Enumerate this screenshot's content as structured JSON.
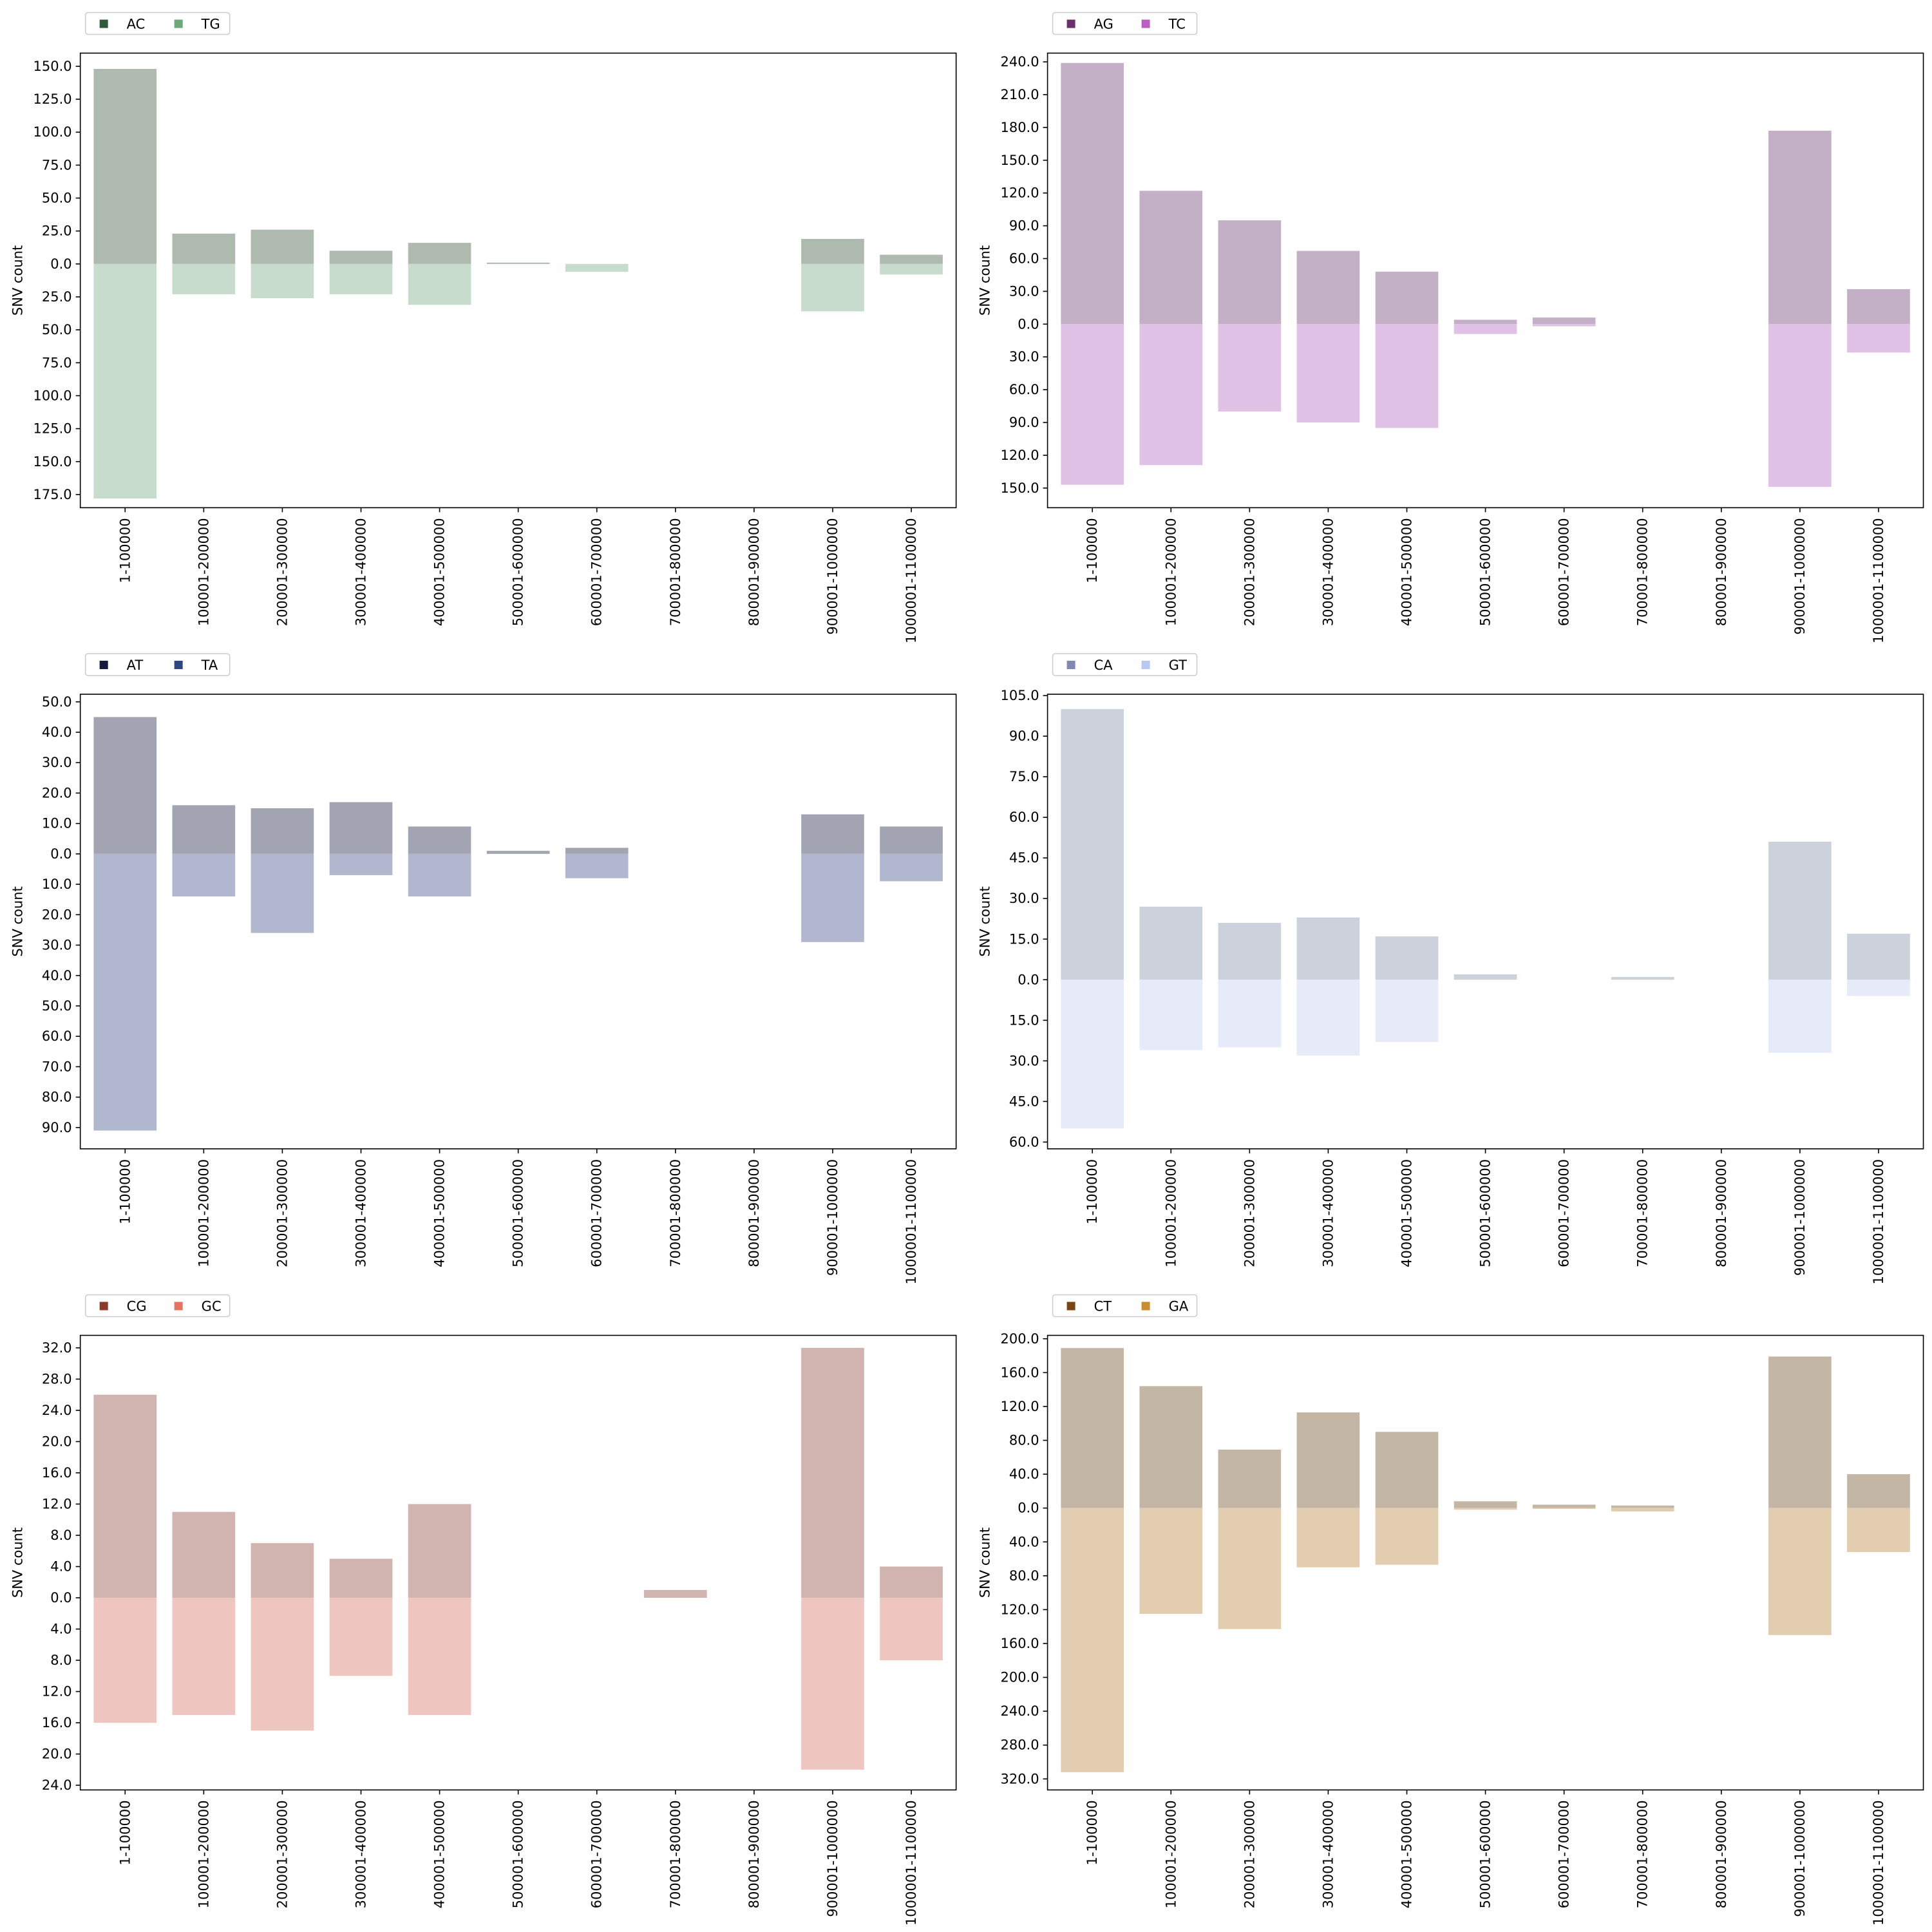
{
  "chart_data": [
    {
      "type": "bar",
      "categories": [
        "1-100000",
        "100001-200000",
        "200001-300000",
        "300001-400000",
        "400001-500000",
        "500001-600000",
        "600001-700000",
        "700001-800000",
        "800001-900000",
        "900001-1000000",
        "1000001-1100000"
      ],
      "ylabel": "SNV count",
      "legend_placement": "top-left",
      "ytick_step": 25,
      "ylim_top": 160,
      "ylim_bottom": 185,
      "ytick_top_max": 150,
      "ytick_bottom_max": 175,
      "up": {
        "name": "AC",
        "legend_color": "#2e5b3c",
        "bar_color": "#aebaaf",
        "values": [
          148,
          23,
          26,
          10,
          16,
          1,
          0,
          0,
          0,
          19,
          7
        ]
      },
      "down": {
        "name": "TG",
        "legend_color": "#6aa97a",
        "bar_color": "#c7dccd",
        "values": [
          178,
          23,
          26,
          23,
          31,
          0,
          6,
          0,
          0,
          36,
          8
        ]
      }
    },
    {
      "type": "bar",
      "categories": [
        "1-100000",
        "100001-200000",
        "200001-300000",
        "300001-400000",
        "400001-500000",
        "500001-600000",
        "600001-700000",
        "700001-800000",
        "800001-900000",
        "900001-1000000",
        "1000001-1100000"
      ],
      "ylabel": "SNV count",
      "legend_placement": "top-left",
      "ytick_step": 30,
      "ylim_top": 248,
      "ylim_bottom": 168,
      "ytick_top_max": 240,
      "ytick_bottom_max": 150,
      "up": {
        "name": "AG",
        "legend_color": "#6b2f6d",
        "bar_color": "#c3b0c6",
        "values": [
          239,
          122,
          95,
          67,
          48,
          4,
          6,
          0,
          0,
          177,
          32
        ]
      },
      "down": {
        "name": "TC",
        "legend_color": "#bd5cc4",
        "bar_color": "#e0c2e6",
        "values": [
          147,
          129,
          80,
          90,
          95,
          9,
          2,
          0,
          0,
          149,
          26
        ]
      }
    },
    {
      "type": "bar",
      "categories": [
        "1-100000",
        "100001-200000",
        "200001-300000",
        "300001-400000",
        "400001-500000",
        "500001-600000",
        "600001-700000",
        "700001-800000",
        "800001-900000",
        "900001-1000000",
        "1000001-1100000"
      ],
      "ylabel": "SNV count",
      "legend_placement": "top-left",
      "ytick_step": 10,
      "ylim_top": 52.5,
      "ylim_bottom": 97,
      "ytick_top_max": 50,
      "ytick_bottom_max": 90,
      "up": {
        "name": "AT",
        "legend_color": "#141b3c",
        "bar_color": "#a2a5b1",
        "values": [
          45,
          16,
          15,
          17,
          9,
          1,
          2,
          0,
          0,
          13,
          9
        ]
      },
      "down": {
        "name": "TA",
        "legend_color": "#2c4685",
        "bar_color": "#b0b7cf",
        "values": [
          91,
          14,
          26,
          7,
          14,
          0,
          8,
          0,
          0,
          29,
          9
        ]
      }
    },
    {
      "type": "bar",
      "categories": [
        "1-100000",
        "100001-200000",
        "200001-300000",
        "300001-400000",
        "400001-500000",
        "500001-600000",
        "600001-700000",
        "700001-800000",
        "800001-900000",
        "900001-1000000",
        "1000001-1100000"
      ],
      "ylabel": "SNV count",
      "legend_placement": "top-left",
      "ytick_step": 15,
      "ylim_top": 105.5,
      "ylim_bottom": 62.5,
      "ytick_top_max": 105,
      "ytick_bottom_max": 60,
      "up": {
        "name": "CA",
        "legend_color": "#7f89b4",
        "bar_color": "#cdd1dc",
        "values": [
          100,
          27,
          21,
          23,
          16,
          2,
          0,
          1,
          0,
          51,
          17
        ]
      },
      "down": {
        "name": "GT",
        "legend_color": "#b9c8f2",
        "bar_color": "#e7ebf9",
        "values": [
          55,
          26,
          25,
          28,
          23,
          0,
          0,
          0,
          0,
          27,
          6
        ]
      }
    },
    {
      "type": "bar",
      "categories": [
        "1-100000",
        "100001-200000",
        "200001-300000",
        "300001-400000",
        "400001-500000",
        "500001-600000",
        "600001-700000",
        "700001-800000",
        "800001-900000",
        "900001-1000000",
        "1000001-1100000"
      ],
      "ylabel": "SNV count",
      "legend_placement": "top-left",
      "ytick_step": 4,
      "ylim_top": 33.6,
      "ylim_bottom": 24.6,
      "ytick_top_max": 32,
      "ytick_bottom_max": 24,
      "up": {
        "name": "CG",
        "legend_color": "#8c3b2a",
        "bar_color": "#d1b4af",
        "values": [
          26,
          11,
          7,
          5,
          12,
          0,
          0,
          1,
          0,
          32,
          4
        ]
      },
      "down": {
        "name": "GC",
        "legend_color": "#e57360",
        "bar_color": "#efc6bf",
        "values": [
          16,
          15,
          17,
          10,
          15,
          0,
          0,
          0,
          0,
          22,
          8
        ]
      }
    },
    {
      "type": "bar",
      "categories": [
        "1-100000",
        "100001-200000",
        "200001-300000",
        "300001-400000",
        "400001-500000",
        "500001-600000",
        "600001-700000",
        "700001-800000",
        "800001-900000",
        "900001-1000000",
        "1000001-1100000"
      ],
      "ylabel": "SNV count",
      "legend_placement": "top-left",
      "ytick_step": 40,
      "ylim_top": 204,
      "ylim_bottom": 333,
      "ytick_top_max": 200,
      "ytick_bottom_max": 320,
      "up": {
        "name": "CT",
        "legend_color": "#7a4513",
        "bar_color": "#c3b6a5",
        "values": [
          189,
          144,
          69,
          113,
          90,
          8,
          4,
          3,
          0,
          179,
          40
        ]
      },
      "down": {
        "name": "GA",
        "legend_color": "#c88d2d",
        "bar_color": "#e2cdb0",
        "values": [
          312,
          125,
          143,
          70,
          67,
          2,
          1,
          4,
          0,
          150,
          52
        ]
      }
    }
  ]
}
